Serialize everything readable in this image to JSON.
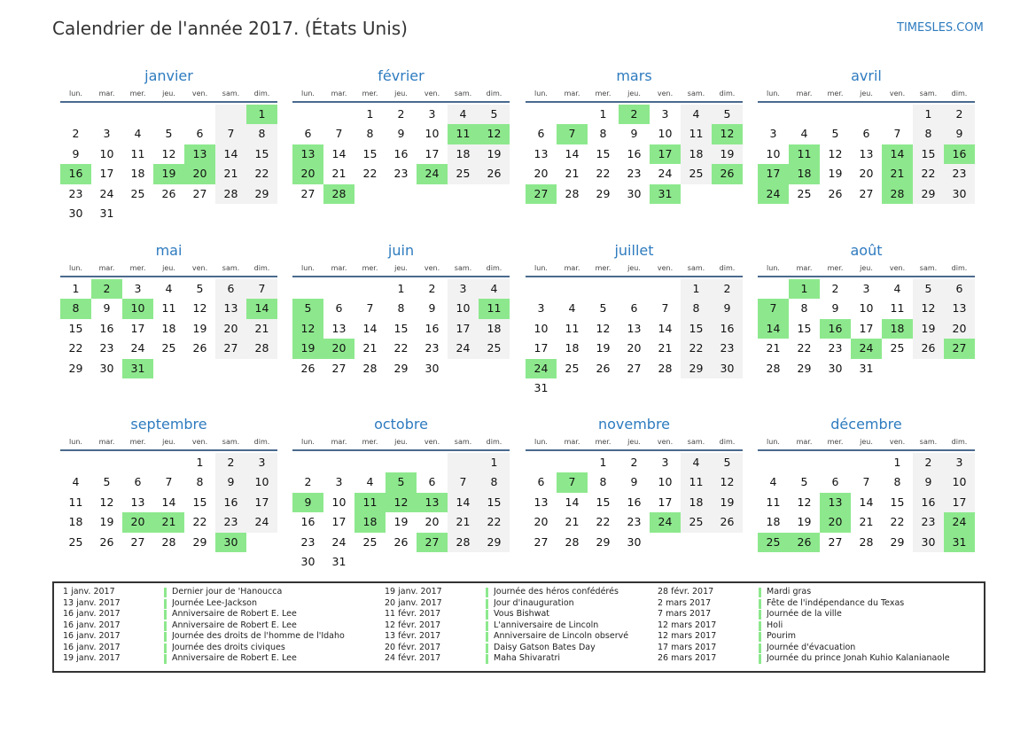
{
  "page": {
    "title": "Calendrier de l'année 2017. (États Unis)",
    "site": "TIMESLES.COM"
  },
  "colors": {
    "accent": "#2e7bbf",
    "holiday": "#8de88d",
    "weekend": "#f2f2f2",
    "rule": "#4a6a8e"
  },
  "weekdays": [
    "lun.",
    "mar.",
    "mer.",
    "jeu.",
    "ven.",
    "sam.",
    "dim."
  ],
  "months": [
    {
      "name": "janvier",
      "offset": 6,
      "days": 31,
      "holidays": [
        1,
        13,
        16,
        19,
        20
      ]
    },
    {
      "name": "février",
      "offset": 2,
      "days": 28,
      "holidays": [
        11,
        12,
        13,
        20,
        24,
        28
      ]
    },
    {
      "name": "mars",
      "offset": 2,
      "days": 31,
      "holidays": [
        2,
        7,
        12,
        17,
        26,
        27,
        31
      ]
    },
    {
      "name": "avril",
      "offset": 5,
      "days": 30,
      "holidays": [
        11,
        14,
        16,
        17,
        18,
        21,
        24,
        28
      ]
    },
    {
      "name": "mai",
      "offset": 0,
      "days": 31,
      "holidays": [
        2,
        8,
        10,
        14,
        31
      ]
    },
    {
      "name": "juin",
      "offset": 3,
      "days": 30,
      "holidays": [
        5,
        11,
        12,
        19,
        20
      ]
    },
    {
      "name": "juillet",
      "offset": 5,
      "days": 31,
      "holidays": [
        24
      ]
    },
    {
      "name": "août",
      "offset": 1,
      "days": 31,
      "holidays": [
        1,
        7,
        14,
        16,
        18,
        24,
        27
      ]
    },
    {
      "name": "septembre",
      "offset": 4,
      "days": 30,
      "holidays": [
        20,
        21,
        30
      ]
    },
    {
      "name": "octobre",
      "offset": 6,
      "days": 31,
      "holidays": [
        5,
        9,
        11,
        12,
        13,
        18,
        27
      ]
    },
    {
      "name": "novembre",
      "offset": 2,
      "days": 30,
      "holidays": [
        7,
        24
      ]
    },
    {
      "name": "décembre",
      "offset": 4,
      "days": 31,
      "holidays": [
        13,
        20,
        24,
        25,
        26,
        31
      ]
    }
  ],
  "holiday_list": [
    [
      {
        "date": "1 janv. 2017",
        "name": "Dernier jour de 'Hanoucca"
      },
      {
        "date": "13 janv. 2017",
        "name": "Journée Lee-Jackson"
      },
      {
        "date": "16 janv. 2017",
        "name": "Anniversaire de Robert E. Lee"
      },
      {
        "date": "16 janv. 2017",
        "name": "Anniversaire de Robert E. Lee"
      },
      {
        "date": "16 janv. 2017",
        "name": "Journée des droits de l'homme de l'Idaho"
      },
      {
        "date": "16 janv. 2017",
        "name": "Journée des droits civiques"
      },
      {
        "date": "19 janv. 2017",
        "name": "Anniversaire de Robert E. Lee"
      }
    ],
    [
      {
        "date": "19 janv. 2017",
        "name": "Journée des héros confédérés"
      },
      {
        "date": "20 janv. 2017",
        "name": "Jour d'inauguration"
      },
      {
        "date": "11 févr. 2017",
        "name": "Vous Bishwat"
      },
      {
        "date": "12 févr. 2017",
        "name": "L'anniversaire de Lincoln"
      },
      {
        "date": "13 févr. 2017",
        "name": "Anniversaire de Lincoln observé"
      },
      {
        "date": "20 févr. 2017",
        "name": "Daisy Gatson Bates Day"
      },
      {
        "date": "24 févr. 2017",
        "name": "Maha Shivaratri"
      }
    ],
    [
      {
        "date": "28 févr. 2017",
        "name": "Mardi gras"
      },
      {
        "date": "2 mars 2017",
        "name": "Fête de l'indépendance du Texas"
      },
      {
        "date": "7 mars 2017",
        "name": "Journée de la ville"
      },
      {
        "date": "12 mars 2017",
        "name": "Holi"
      },
      {
        "date": "12 mars 2017",
        "name": "Pourim"
      },
      {
        "date": "17 mars 2017",
        "name": "Journée d'évacuation"
      },
      {
        "date": "26 mars 2017",
        "name": "Journée du prince Jonah Kuhio Kalanianaole"
      }
    ]
  ]
}
